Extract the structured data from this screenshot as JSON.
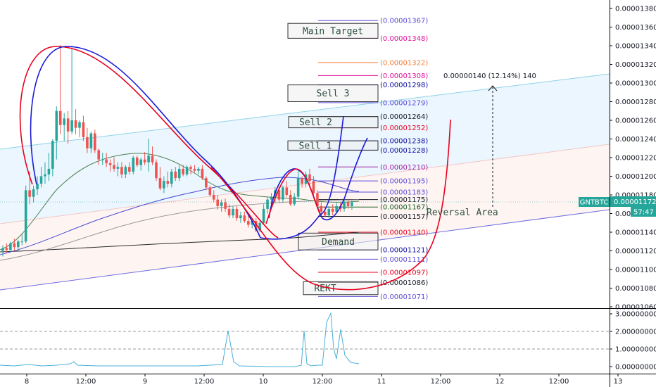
{
  "chart_data": {
    "type": "candlestick",
    "symbol": "GNTBTC",
    "last_price": "0.00001172",
    "countdown": "57:47",
    "price_axis": {
      "range": [
        1.052e-05,
        1.39e-05
      ],
      "ticks": [
        "0.00001380",
        "0.00001360",
        "0.00001340",
        "0.00001320",
        "0.00001300",
        "0.00001280",
        "0.00001260",
        "0.00001240",
        "0.00001220",
        "0.00001200",
        "0.00001180",
        "0.00001160",
        "0.00001140",
        "0.00001120",
        "0.00001100",
        "0.00001080",
        "0.00001060"
      ]
    },
    "time_axis": {
      "labels": [
        "8",
        "12:00",
        "9",
        "12:00",
        "10",
        "12:00",
        "11",
        "12:00",
        "12",
        "12:00",
        "13"
      ]
    },
    "indicator": {
      "ticks": [
        "3.00000000",
        "2.00000000",
        "1.00000000",
        "0.00000000"
      ]
    },
    "level_colors": {
      "black": "#131722",
      "navy": "#0d0d9e",
      "blue": "#5b4bd6",
      "purple": "#a020a0",
      "pink": "#e0109a",
      "orange": "#f57c36",
      "red": "#e8001c",
      "green": "#1b5e20",
      "grey": "#666666"
    },
    "levels": [
      {
        "label": "(0.00001367)",
        "price": 1.367e-05,
        "color": "blue"
      },
      {
        "label": "(0.00001348)",
        "price": 1.348e-05,
        "color": "pink"
      },
      {
        "label": "(0.00001322)",
        "price": 1.322e-05,
        "color": "orange"
      },
      {
        "label": "(0.00001308)",
        "price": 1.308e-05,
        "color": "pink"
      },
      {
        "label": "(0.00001298)",
        "price": 1.298e-05,
        "color": "navy"
      },
      {
        "label": "(0.00001279)",
        "price": 1.279e-05,
        "color": "blue"
      },
      {
        "label": "(0.00001264)",
        "price": 1.264e-05,
        "color": "black"
      },
      {
        "label": "(0.00001252)",
        "price": 1.252e-05,
        "color": "red"
      },
      {
        "label": "(0.00001238)",
        "price": 1.238e-05,
        "color": "navy"
      },
      {
        "label": "(0.00001228)",
        "price": 1.228e-05,
        "color": "navy"
      },
      {
        "label": "(0.00001210)",
        "price": 1.21e-05,
        "color": "purple"
      },
      {
        "label": "(0.00001195)",
        "price": 1.195e-05,
        "color": "blue"
      },
      {
        "label": "(0.00001183)",
        "price": 1.183e-05,
        "color": "blue"
      },
      {
        "label": "(0.00001175)",
        "price": 1.175e-05,
        "color": "black"
      },
      {
        "label": "(0.00001167)",
        "price": 1.167e-05,
        "color": "green"
      },
      {
        "label": "(0.00001157)",
        "price": 1.157e-05,
        "color": "black"
      },
      {
        "label": "(0.00001140)",
        "price": 1.14e-05,
        "color": "red"
      },
      {
        "label": "(0.00001121)",
        "price": 1.121e-05,
        "color": "navy"
      },
      {
        "label": "(0.00001111)",
        "price": 1.111e-05,
        "color": "blue"
      },
      {
        "label": "(0.00001097)",
        "price": 1.097e-05,
        "color": "red"
      },
      {
        "label": "(0.00001086)",
        "price": 1.086e-05,
        "color": "black"
      },
      {
        "label": "(0.00001071)",
        "price": 1.071e-05,
        "color": "blue"
      }
    ],
    "zones": [
      {
        "label": "Main Target",
        "high": 1.364e-05,
        "low": 1.348e-05
      },
      {
        "label": "Sell 3",
        "high": 1.298e-05,
        "low": 1.28e-05
      },
      {
        "label": "Sell 2",
        "high": 1.264e-05,
        "low": 1.252e-05
      },
      {
        "label": "Sell 1",
        "high": 1.238e-05,
        "low": 1.228e-05
      },
      {
        "label": "Demand",
        "high": 1.139e-05,
        "low": 1.121e-05
      },
      {
        "label": "REKT",
        "high": 1.087e-05,
        "low": 1.073e-05
      }
    ],
    "annotations": {
      "measure": "0.00000140 (12.14%) 140",
      "reversal": "Reversal Area"
    },
    "candles": [
      [
        0,
        1.12e-05,
        1.126e-05,
        1.114e-05,
        1.123e-05
      ],
      [
        1,
        1.123e-05,
        1.128e-05,
        1.118e-05,
        1.121e-05
      ],
      [
        2,
        1.121e-05,
        1.13e-05,
        1.119e-05,
        1.128e-05
      ],
      [
        3,
        1.128e-05,
        1.133e-05,
        1.12e-05,
        1.124e-05
      ],
      [
        4,
        1.124e-05,
        1.132e-05,
        1.12e-05,
        1.13e-05
      ],
      [
        5,
        1.13e-05,
        1.138e-05,
        1.126e-05,
        1.13e-05
      ],
      [
        6,
        1.13e-05,
        1.19e-05,
        1.128e-05,
        1.185e-05
      ],
      [
        7,
        1.185e-05,
        1.205e-05,
        1.17e-05,
        1.178e-05
      ],
      [
        8,
        1.178e-05,
        1.19e-05,
        1.172e-05,
        1.186e-05
      ],
      [
        9,
        1.186e-05,
        1.2e-05,
        1.18e-05,
        1.192e-05
      ],
      [
        10,
        1.192e-05,
        1.21e-05,
        1.188e-05,
        1.2e-05
      ],
      [
        11,
        1.2e-05,
        1.215e-05,
        1.192e-05,
        1.202e-05
      ],
      [
        12,
        1.202e-05,
        1.225e-05,
        1.195e-05,
        1.208e-05
      ],
      [
        13,
        1.208e-05,
        1.24e-05,
        1.2e-05,
        1.238e-05
      ],
      [
        14,
        1.238e-05,
        1.275e-05,
        1.218e-05,
        1.27e-05
      ],
      [
        15,
        1.27e-05,
        1.341e-05,
        1.245e-05,
        1.255e-05
      ],
      [
        16,
        1.255e-05,
        1.268e-05,
        1.238e-05,
        1.262e-05
      ],
      [
        17,
        1.262e-05,
        1.27e-05,
        1.235e-05,
        1.248e-05
      ],
      [
        18,
        1.248e-05,
        1.34e-05,
        1.245e-05,
        1.26e-05
      ],
      [
        19,
        1.26e-05,
        1.272e-05,
        1.245e-05,
        1.252e-05
      ],
      [
        20,
        1.252e-05,
        1.26e-05,
        1.242e-05,
        1.258e-05
      ],
      [
        21,
        1.258e-05,
        1.265e-05,
        1.238e-05,
        1.242e-05
      ],
      [
        22,
        1.242e-05,
        1.252e-05,
        1.225e-05,
        1.23e-05
      ],
      [
        23,
        1.23e-05,
        1.248e-05,
        1.225e-05,
        1.246e-05
      ],
      [
        24,
        1.246e-05,
        1.25e-05,
        1.225e-05,
        1.228e-05
      ],
      [
        25,
        1.228e-05,
        1.23e-05,
        1.212e-05,
        1.218e-05
      ],
      [
        26,
        1.218e-05,
        1.225e-05,
        1.212e-05,
        1.218e-05
      ],
      [
        27,
        1.218e-05,
        1.225e-05,
        1.21e-05,
        1.214e-05
      ],
      [
        28,
        1.214e-05,
        1.218e-05,
        1.205e-05,
        1.212e-05
      ],
      [
        29,
        1.212e-05,
        1.22e-05,
        1.205e-05,
        1.208e-05
      ],
      [
        30,
        1.208e-05,
        1.215e-05,
        1.2e-05,
        1.21e-05
      ],
      [
        31,
        1.21e-05,
        1.215e-05,
        1.198e-05,
        1.202e-05
      ],
      [
        32,
        1.202e-05,
        1.212e-05,
        1.198e-05,
        1.21e-05
      ],
      [
        33,
        1.21e-05,
        1.215e-05,
        1.202e-05,
        1.205e-05
      ],
      [
        34,
        1.205e-05,
        1.222e-05,
        1.202e-05,
        1.22e-05
      ],
      [
        35,
        1.22e-05,
        1.222e-05,
        1.21e-05,
        1.212e-05
      ],
      [
        36,
        1.212e-05,
        1.22e-05,
        1.206e-05,
        1.218e-05
      ],
      [
        37,
        1.218e-05,
        1.226e-05,
        1.212e-05,
        1.215e-05
      ],
      [
        38,
        1.215e-05,
        1.24e-05,
        1.205e-05,
        1.222e-05
      ],
      [
        39,
        1.222e-05,
        1.232e-05,
        1.212e-05,
        1.215e-05
      ],
      [
        40,
        1.215e-05,
        1.218e-05,
        1.195e-05,
        1.198e-05
      ],
      [
        41,
        1.198e-05,
        1.21e-05,
        1.185e-05,
        1.187e-05
      ],
      [
        42,
        1.187e-05,
        1.2e-05,
        1.182e-05,
        1.195e-05
      ],
      [
        43,
        1.195e-05,
        1.205e-05,
        1.188e-05,
        1.192e-05
      ],
      [
        44,
        1.192e-05,
        1.208e-05,
        1.188e-05,
        1.205e-05
      ],
      [
        45,
        1.205e-05,
        1.21e-05,
        1.195e-05,
        1.198e-05
      ],
      [
        46,
        1.198e-05,
        1.212e-05,
        1.195e-05,
        1.208e-05
      ],
      [
        47,
        1.208e-05,
        1.212e-05,
        1.2e-05,
        1.202e-05
      ],
      [
        48,
        1.202e-05,
        1.212e-05,
        1.2e-05,
        1.21e-05
      ],
      [
        49,
        1.21e-05,
        1.212e-05,
        1.202e-05,
        1.208e-05
      ],
      [
        50,
        1.208e-05,
        1.212e-05,
        1.204e-05,
        1.206e-05
      ],
      [
        51,
        1.206e-05,
        1.21e-05,
        1.202e-05,
        1.208e-05
      ],
      [
        52,
        1.208e-05,
        1.212e-05,
        1.196e-05,
        1.198e-05
      ],
      [
        53,
        1.198e-05,
        1.2e-05,
        1.185e-05,
        1.188e-05
      ],
      [
        54,
        1.188e-05,
        1.19e-05,
        1.178e-05,
        1.18e-05
      ],
      [
        55,
        1.18e-05,
        1.185e-05,
        1.172e-05,
        1.175e-05
      ],
      [
        56,
        1.175e-05,
        1.18e-05,
        1.164e-05,
        1.168e-05
      ],
      [
        57,
        1.168e-05,
        1.175e-05,
        1.162e-05,
        1.172e-05
      ],
      [
        58,
        1.172e-05,
        1.176e-05,
        1.162e-05,
        1.165e-05
      ],
      [
        59,
        1.165e-05,
        1.17e-05,
        1.155e-05,
        1.158e-05
      ],
      [
        60,
        1.158e-05,
        1.168e-05,
        1.155e-05,
        1.165e-05
      ],
      [
        61,
        1.165e-05,
        1.168e-05,
        1.152e-05,
        1.155e-05
      ],
      [
        62,
        1.155e-05,
        1.162e-05,
        1.15e-05,
        1.158e-05
      ],
      [
        63,
        1.158e-05,
        1.162e-05,
        1.15e-05,
        1.152e-05
      ],
      [
        64,
        1.152e-05,
        1.158e-05,
        1.145e-05,
        1.148e-05
      ],
      [
        65,
        1.148e-05,
        1.155e-05,
        1.144e-05,
        1.152e-05
      ],
      [
        66,
        1.152e-05,
        1.155e-05,
        1.14e-05,
        1.142e-05
      ],
      [
        67,
        1.142e-05,
        1.152e-05,
        1.14e-05,
        1.15e-05
      ],
      [
        68,
        1.15e-05,
        1.17e-05,
        1.148e-05,
        1.165e-05
      ],
      [
        69,
        1.165e-05,
        1.178e-05,
        1.16e-05,
        1.175e-05
      ],
      [
        70,
        1.175e-05,
        1.182e-05,
        1.17e-05,
        1.178e-05
      ],
      [
        71,
        1.178e-05,
        1.188e-05,
        1.172e-05,
        1.185e-05
      ],
      [
        72,
        1.185e-05,
        1.188e-05,
        1.172e-05,
        1.175e-05
      ],
      [
        73,
        1.175e-05,
        1.19e-05,
        1.172e-05,
        1.188e-05
      ],
      [
        74,
        1.188e-05,
        1.195e-05,
        1.178e-05,
        1.18e-05
      ],
      [
        75,
        1.18e-05,
        1.185e-05,
        1.168e-05,
        1.17e-05
      ],
      [
        76,
        1.17e-05,
        1.182e-05,
        1.168e-05,
        1.178e-05
      ],
      [
        77,
        1.178e-05,
        1.206e-05,
        1.175e-05,
        1.198e-05
      ],
      [
        78,
        1.198e-05,
        1.2e-05,
        1.188e-05,
        1.192e-05
      ],
      [
        79,
        1.192e-05,
        1.205e-05,
        1.188e-05,
        1.202e-05
      ],
      [
        80,
        1.202e-05,
        1.208e-05,
        1.19e-05,
        1.195e-05
      ],
      [
        81,
        1.195e-05,
        1.2e-05,
        1.18e-05,
        1.182e-05
      ],
      [
        82,
        1.182e-05,
        1.185e-05,
        1.165e-05,
        1.168e-05
      ],
      [
        83,
        1.168e-05,
        1.172e-05,
        1.158e-05,
        1.162e-05
      ],
      [
        84,
        1.162e-05,
        1.168e-05,
        1.156e-05,
        1.158e-05
      ],
      [
        85,
        1.158e-05,
        1.168e-05,
        1.155e-05,
        1.165e-05
      ],
      [
        86,
        1.165e-05,
        1.17e-05,
        1.158e-05,
        1.162e-05
      ],
      [
        87,
        1.162e-05,
        1.172e-05,
        1.16e-05,
        1.168e-05
      ],
      [
        88,
        1.168e-05,
        1.172e-05,
        1.162e-05,
        1.165e-05
      ],
      [
        89,
        1.165e-05,
        1.175e-05,
        1.162e-05,
        1.172e-05
      ],
      [
        90,
        1.172e-05,
        1.175e-05,
        1.165e-05,
        1.168e-05
      ],
      [
        91,
        1.168e-05,
        1.174e-05,
        1.164e-05,
        1.172e-05
      ]
    ]
  }
}
